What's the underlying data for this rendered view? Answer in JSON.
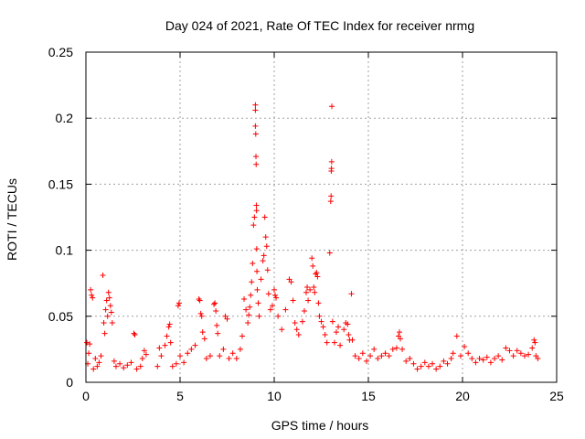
{
  "chart_data": {
    "type": "scatter",
    "title": "Day 024 of 2021, Rate Of TEC Index for receiver nrmg",
    "xlabel": "GPS time / hours",
    "ylabel": "ROTI / TECUs",
    "xlim": [
      0,
      25
    ],
    "ylim": [
      0,
      0.25
    ],
    "x_ticks": [
      "0",
      "5",
      "10",
      "15",
      "20",
      "25"
    ],
    "y_ticks": [
      "0",
      "0.05",
      "0.1",
      "0.15",
      "0.2",
      "0.25"
    ],
    "grid": true,
    "marker": "+",
    "series_color": "#ff0000",
    "series": [
      {
        "points": [
          [
            0.05,
            0.03
          ],
          [
            0.1,
            0.014
          ],
          [
            0.15,
            0.022
          ],
          [
            0.2,
            0.029
          ],
          [
            0.25,
            0.07
          ],
          [
            0.3,
            0.066
          ],
          [
            0.35,
            0.064
          ],
          [
            0.4,
            0.01
          ],
          [
            0.5,
            0.018
          ],
          [
            0.6,
            0.012
          ],
          [
            0.7,
            0.015
          ],
          [
            0.8,
            0.02
          ],
          [
            0.9,
            0.081
          ],
          [
            0.95,
            0.045
          ],
          [
            1.0,
            0.037
          ],
          [
            1.05,
            0.055
          ],
          [
            1.1,
            0.062
          ],
          [
            1.15,
            0.05
          ],
          [
            1.2,
            0.068
          ],
          [
            1.25,
            0.064
          ],
          [
            1.3,
            0.058
          ],
          [
            1.35,
            0.053
          ],
          [
            1.4,
            0.045
          ],
          [
            1.5,
            0.016
          ],
          [
            1.6,
            0.012
          ],
          [
            1.8,
            0.014
          ],
          [
            2.0,
            0.011
          ],
          [
            2.2,
            0.013
          ],
          [
            2.4,
            0.015
          ],
          [
            2.55,
            0.037
          ],
          [
            2.6,
            0.036
          ],
          [
            2.7,
            0.01
          ],
          [
            2.9,
            0.012
          ],
          [
            3.0,
            0.018
          ],
          [
            3.1,
            0.024
          ],
          [
            3.2,
            0.021
          ],
          [
            3.8,
            0.012
          ],
          [
            3.9,
            0.026
          ],
          [
            4.0,
            0.02
          ],
          [
            4.2,
            0.028
          ],
          [
            4.3,
            0.035
          ],
          [
            4.4,
            0.042
          ],
          [
            4.45,
            0.044
          ],
          [
            4.5,
            0.03
          ],
          [
            4.6,
            0.012
          ],
          [
            4.8,
            0.014
          ],
          [
            4.9,
            0.058
          ],
          [
            4.95,
            0.06
          ],
          [
            5.0,
            0.02
          ],
          [
            5.2,
            0.015
          ],
          [
            5.4,
            0.022
          ],
          [
            5.6,
            0.025
          ],
          [
            5.8,
            0.028
          ],
          [
            6.0,
            0.063
          ],
          [
            6.05,
            0.062
          ],
          [
            6.1,
            0.052
          ],
          [
            6.15,
            0.05
          ],
          [
            6.2,
            0.038
          ],
          [
            6.3,
            0.033
          ],
          [
            6.4,
            0.018
          ],
          [
            6.6,
            0.02
          ],
          [
            6.8,
            0.059
          ],
          [
            6.85,
            0.06
          ],
          [
            6.9,
            0.054
          ],
          [
            6.95,
            0.043
          ],
          [
            7.0,
            0.037
          ],
          [
            7.1,
            0.02
          ],
          [
            7.3,
            0.025
          ],
          [
            7.4,
            0.05
          ],
          [
            7.5,
            0.048
          ],
          [
            7.6,
            0.018
          ],
          [
            7.8,
            0.022
          ],
          [
            8.0,
            0.018
          ],
          [
            8.2,
            0.025
          ],
          [
            8.3,
            0.035
          ],
          [
            8.4,
            0.063
          ],
          [
            8.5,
            0.055
          ],
          [
            8.6,
            0.045
          ],
          [
            8.65,
            0.051
          ],
          [
            8.7,
            0.057
          ],
          [
            8.75,
            0.066
          ],
          [
            8.8,
            0.076
          ],
          [
            8.85,
            0.09
          ],
          [
            8.9,
            0.119
          ],
          [
            8.95,
            0.125
          ],
          [
            9.0,
            0.21
          ],
          [
            9.0,
            0.206
          ],
          [
            9.0,
            0.194
          ],
          [
            9.02,
            0.188
          ],
          [
            9.03,
            0.171
          ],
          [
            9.04,
            0.165
          ],
          [
            9.05,
            0.134
          ],
          [
            9.06,
            0.13
          ],
          [
            9.07,
            0.101
          ],
          [
            9.08,
            0.084
          ],
          [
            9.1,
            0.07
          ],
          [
            9.15,
            0.06
          ],
          [
            9.2,
            0.05
          ],
          [
            9.3,
            0.078
          ],
          [
            9.4,
            0.092
          ],
          [
            9.45,
            0.096
          ],
          [
            9.5,
            0.125
          ],
          [
            9.55,
            0.11
          ],
          [
            9.6,
            0.103
          ],
          [
            9.65,
            0.085
          ],
          [
            9.7,
            0.067
          ],
          [
            9.8,
            0.055
          ],
          [
            9.9,
            0.058
          ],
          [
            10.0,
            0.07
          ],
          [
            10.05,
            0.066
          ],
          [
            10.1,
            0.064
          ],
          [
            10.2,
            0.05
          ],
          [
            10.4,
            0.04
          ],
          [
            10.6,
            0.055
          ],
          [
            10.8,
            0.078
          ],
          [
            10.9,
            0.076
          ],
          [
            11.0,
            0.062
          ],
          [
            11.1,
            0.045
          ],
          [
            11.2,
            0.04
          ],
          [
            11.3,
            0.036
          ],
          [
            11.5,
            0.046
          ],
          [
            11.6,
            0.054
          ],
          [
            11.7,
            0.068
          ],
          [
            11.75,
            0.072
          ],
          [
            11.8,
            0.062
          ],
          [
            11.9,
            0.07
          ],
          [
            12.0,
            0.094
          ],
          [
            12.05,
            0.088
          ],
          [
            12.1,
            0.072
          ],
          [
            12.15,
            0.068
          ],
          [
            12.2,
            0.082
          ],
          [
            12.25,
            0.083
          ],
          [
            12.3,
            0.08
          ],
          [
            12.35,
            0.06
          ],
          [
            12.4,
            0.05
          ],
          [
            12.5,
            0.046
          ],
          [
            12.6,
            0.042
          ],
          [
            12.7,
            0.036
          ],
          [
            12.8,
            0.03
          ],
          [
            12.95,
            0.098
          ],
          [
            13.0,
            0.137
          ],
          [
            13.02,
            0.141
          ],
          [
            13.03,
            0.16
          ],
          [
            13.04,
            0.162
          ],
          [
            13.05,
            0.167
          ],
          [
            13.06,
            0.209
          ],
          [
            13.1,
            0.046
          ],
          [
            13.2,
            0.03
          ],
          [
            13.3,
            0.038
          ],
          [
            13.4,
            0.042
          ],
          [
            13.5,
            0.028
          ],
          [
            13.7,
            0.04
          ],
          [
            13.8,
            0.045
          ],
          [
            13.9,
            0.044
          ],
          [
            13.95,
            0.036
          ],
          [
            14.0,
            0.032
          ],
          [
            14.1,
            0.067
          ],
          [
            14.15,
            0.032
          ],
          [
            14.3,
            0.02
          ],
          [
            14.5,
            0.018
          ],
          [
            14.7,
            0.022
          ],
          [
            14.9,
            0.016
          ],
          [
            15.1,
            0.02
          ],
          [
            15.3,
            0.025
          ],
          [
            15.5,
            0.018
          ],
          [
            15.7,
            0.02
          ],
          [
            15.9,
            0.022
          ],
          [
            16.1,
            0.02
          ],
          [
            16.3,
            0.025
          ],
          [
            16.5,
            0.026
          ],
          [
            16.6,
            0.035
          ],
          [
            16.65,
            0.038
          ],
          [
            16.7,
            0.033
          ],
          [
            16.8,
            0.025
          ],
          [
            17.0,
            0.016
          ],
          [
            17.2,
            0.018
          ],
          [
            17.4,
            0.014
          ],
          [
            17.6,
            0.01
          ],
          [
            17.8,
            0.012
          ],
          [
            18.0,
            0.015
          ],
          [
            18.2,
            0.012
          ],
          [
            18.4,
            0.014
          ],
          [
            18.6,
            0.01
          ],
          [
            18.8,
            0.012
          ],
          [
            19.0,
            0.016
          ],
          [
            19.2,
            0.014
          ],
          [
            19.4,
            0.018
          ],
          [
            19.5,
            0.022
          ],
          [
            19.7,
            0.035
          ],
          [
            19.9,
            0.02
          ],
          [
            20.1,
            0.027
          ],
          [
            20.3,
            0.022
          ],
          [
            20.5,
            0.018
          ],
          [
            20.7,
            0.015
          ],
          [
            20.9,
            0.018
          ],
          [
            21.1,
            0.017
          ],
          [
            21.3,
            0.019
          ],
          [
            21.5,
            0.015
          ],
          [
            21.7,
            0.018
          ],
          [
            21.9,
            0.02
          ],
          [
            22.1,
            0.017
          ],
          [
            22.3,
            0.026
          ],
          [
            22.5,
            0.024
          ],
          [
            22.7,
            0.02
          ],
          [
            22.9,
            0.024
          ],
          [
            23.1,
            0.022
          ],
          [
            23.3,
            0.02
          ],
          [
            23.5,
            0.021
          ],
          [
            23.7,
            0.026
          ],
          [
            23.8,
            0.032
          ],
          [
            23.85,
            0.03
          ],
          [
            23.9,
            0.02
          ],
          [
            24.0,
            0.018
          ]
        ]
      }
    ]
  }
}
